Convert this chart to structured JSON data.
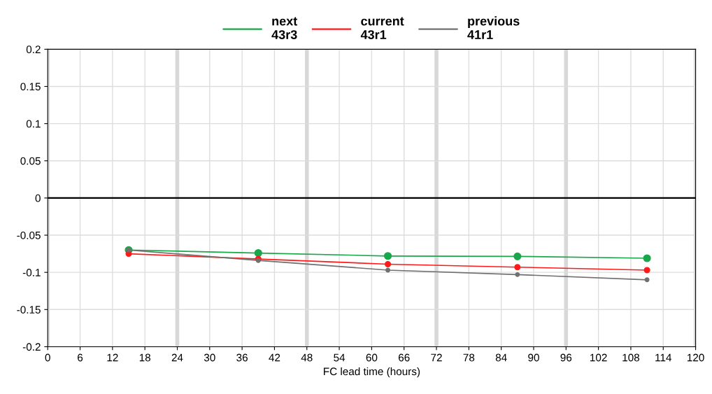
{
  "chart_data": {
    "type": "line",
    "xlabel": "FC lead time (hours)",
    "x": [
      15,
      39,
      63,
      87,
      111
    ],
    "series": [
      {
        "name": "next\n43r3",
        "color": "#1aa64a",
        "values": [
          -0.07,
          -0.074,
          -0.078,
          -0.0785,
          -0.081
        ]
      },
      {
        "name": "current\n43r1",
        "color": "#ff1a1a",
        "values": [
          -0.075,
          -0.082,
          -0.089,
          -0.093,
          -0.097
        ]
      },
      {
        "name": "previous\n41r1",
        "color": "#707070",
        "values": [
          -0.07,
          -0.084,
          -0.097,
          -0.103,
          -0.11
        ]
      }
    ],
    "xlim": [
      0,
      120
    ],
    "xticks": [
      0,
      6,
      12,
      18,
      24,
      30,
      36,
      42,
      48,
      54,
      60,
      66,
      72,
      78,
      84,
      90,
      96,
      102,
      108,
      114,
      120
    ],
    "ylim": [
      -0.2,
      0.2
    ],
    "yticks": [
      -0.2,
      -0.15,
      -0.1,
      -0.05,
      0,
      0.05,
      0.1,
      0.15,
      0.2
    ],
    "ref_lines": [
      {
        "axis": "y",
        "value": 0,
        "color": "#000000"
      }
    ],
    "grid": true,
    "legend": "top",
    "marker": "circle",
    "line_style": "solid"
  }
}
